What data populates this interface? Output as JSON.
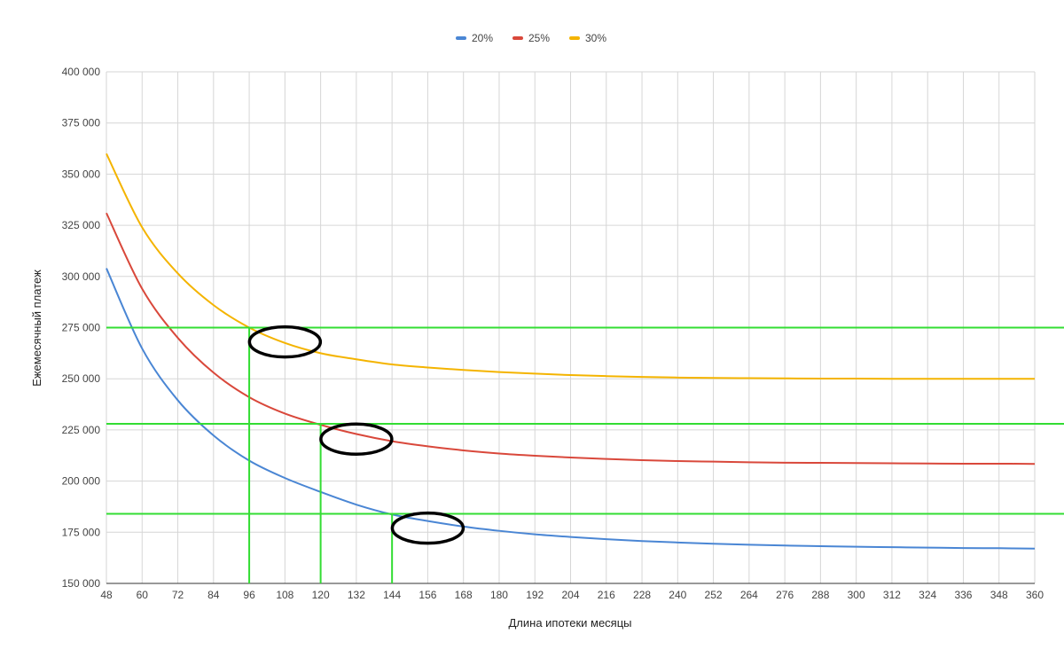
{
  "chart_data": {
    "type": "line",
    "title": "",
    "xlabel": "Длина ипотеки месяцы",
    "ylabel": "Ежемесячный платеж",
    "xlim": [
      48,
      360
    ],
    "ylim": [
      150000,
      400000
    ],
    "x_ticks": [
      48,
      60,
      72,
      84,
      96,
      108,
      120,
      132,
      144,
      156,
      168,
      180,
      192,
      204,
      216,
      228,
      240,
      252,
      264,
      276,
      288,
      300,
      312,
      324,
      336,
      348,
      360
    ],
    "y_ticks": [
      150000,
      175000,
      200000,
      225000,
      250000,
      275000,
      300000,
      325000,
      350000,
      375000,
      400000
    ],
    "y_tick_labels": [
      "150 000",
      "175 000",
      "200 000",
      "225 000",
      "250 000",
      "275 000",
      "300 000",
      "325 000",
      "350 000",
      "375 000",
      "400 000"
    ],
    "grid": true,
    "legend_position": "top-center",
    "x": [
      48,
      60,
      72,
      84,
      96,
      108,
      120,
      132,
      144,
      156,
      168,
      180,
      192,
      204,
      216,
      228,
      240,
      252,
      264,
      276,
      288,
      300,
      312,
      324,
      336,
      348,
      360
    ],
    "series": [
      {
        "name": "20%",
        "color": "#4a86d4",
        "values": [
          304000,
          264800,
          239500,
          222300,
          210000,
          201500,
          194700,
          188500,
          183700,
          180500,
          177800,
          175700,
          174000,
          172700,
          171600,
          170700,
          170000,
          169400,
          168900,
          168500,
          168200,
          167900,
          167700,
          167500,
          167300,
          167200,
          167000
        ]
      },
      {
        "name": "25%",
        "color": "#d9483b",
        "values": [
          331000,
          294000,
          270000,
          253000,
          241000,
          233000,
          227500,
          223000,
          219500,
          217000,
          215000,
          213500,
          212400,
          211500,
          210800,
          210200,
          209800,
          209500,
          209200,
          209000,
          208900,
          208800,
          208700,
          208600,
          208500,
          208500,
          208400
        ]
      },
      {
        "name": "30%",
        "color": "#f4b400",
        "values": [
          360000,
          324000,
          301500,
          286000,
          275000,
          267500,
          262500,
          259500,
          257000,
          255500,
          254300,
          253300,
          252500,
          251800,
          251300,
          250900,
          250600,
          250400,
          250300,
          250200,
          250100,
          250100,
          250000,
          250000,
          250000,
          250000,
          250000
        ]
      }
    ],
    "annotations": {
      "horizontal_lines": [
        275000,
        228000,
        184000
      ],
      "vertical_lines": [
        {
          "x": 96,
          "y_top": 275000
        },
        {
          "x": 120,
          "y_top": 228000
        },
        {
          "x": 144,
          "y_top": 184000
        }
      ],
      "ellipses": [
        {
          "cx": 108,
          "cy": 268000
        },
        {
          "cx": 132,
          "cy": 220500
        },
        {
          "cx": 156,
          "cy": 177000
        }
      ],
      "marker_color": "#33dd33"
    }
  }
}
